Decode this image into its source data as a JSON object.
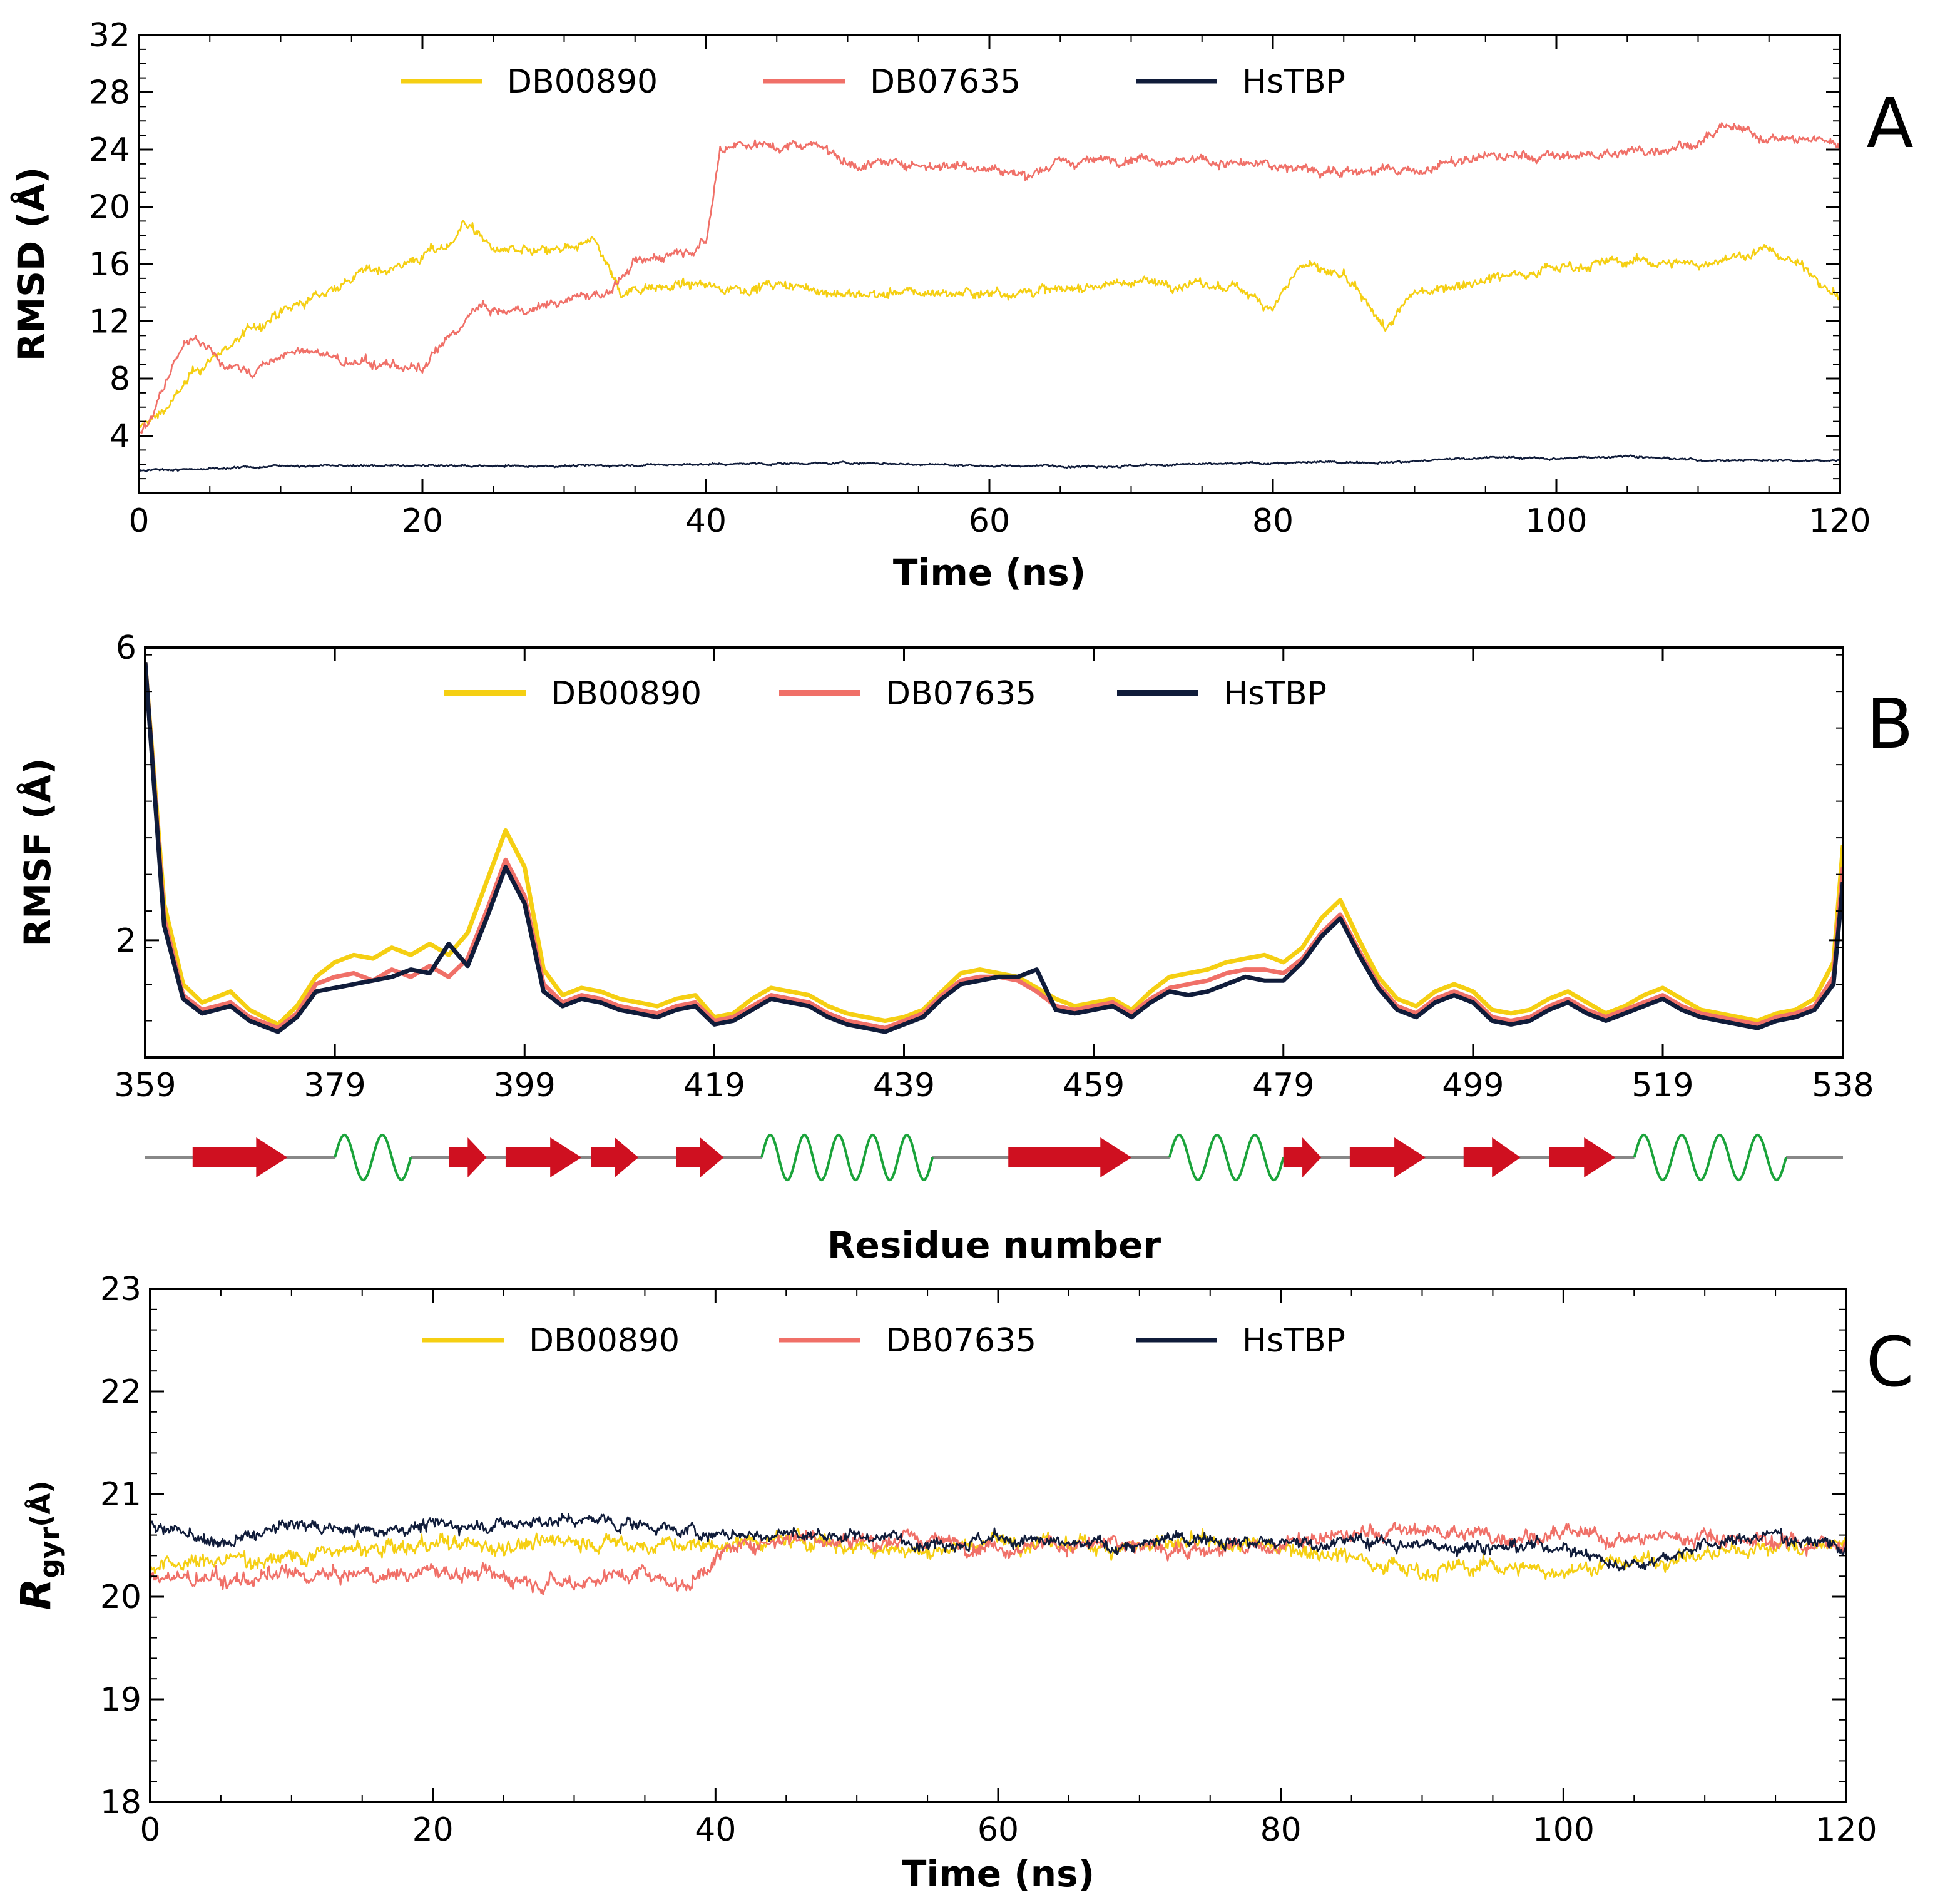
{
  "chart_data": [
    {
      "panel": "A",
      "type": "line",
      "xlabel": "Time (ns)",
      "ylabel": "RMSD (Å)",
      "xlim": [
        0,
        120
      ],
      "ylim": [
        0,
        32
      ],
      "xticks": [
        0,
        20,
        40,
        60,
        80,
        100,
        120
      ],
      "yticks": [
        4,
        8,
        12,
        16,
        20,
        24,
        28,
        32
      ],
      "legend_position": "top-center",
      "series": [
        {
          "name": "DB00890",
          "color": "#f5cf13",
          "x": [
            0,
            2,
            4,
            6,
            8,
            10,
            12,
            14,
            16,
            18,
            20,
            22,
            23,
            25,
            28,
            31,
            32,
            34,
            36,
            38,
            40,
            42,
            45,
            48,
            50,
            55,
            60,
            65,
            70,
            75,
            78,
            80,
            82,
            85,
            88,
            90,
            95,
            100,
            105,
            110,
            115,
            118,
            120
          ],
          "values": [
            4.5,
            6,
            8.5,
            10,
            11.5,
            12.5,
            13.5,
            14.5,
            15.5,
            15.8,
            16.5,
            17.5,
            19,
            17,
            16.8,
            17,
            18,
            14,
            14.5,
            14.5,
            14.5,
            14.3,
            14.5,
            14.2,
            13.8,
            14,
            14,
            14.2,
            14.8,
            14.5,
            14.2,
            13,
            16,
            15,
            11.5,
            14,
            15,
            15.8,
            16.2,
            16,
            17,
            15.5,
            13.5
          ]
        },
        {
          "name": "DB07635",
          "color": "#f07068",
          "x": [
            0,
            1,
            2,
            3,
            4,
            6,
            8,
            10,
            12,
            15,
            18,
            20,
            22,
            24,
            26,
            28,
            30,
            33,
            35,
            38,
            40,
            41,
            42,
            45,
            48,
            50,
            55,
            60,
            62,
            65,
            70,
            75,
            80,
            85,
            90,
            95,
            100,
            105,
            110,
            112,
            115,
            120
          ],
          "values": [
            4,
            5.5,
            8,
            10,
            11,
            9,
            8.5,
            9.5,
            10,
            9,
            9,
            8.5,
            11,
            13,
            12.5,
            13,
            13.5,
            14,
            16,
            17,
            17.5,
            24,
            24.5,
            24.2,
            24.5,
            23,
            23,
            22.8,
            22.2,
            23,
            23.5,
            23.2,
            22.8,
            22.5,
            22.5,
            23.5,
            23.5,
            23.8,
            24.5,
            25.5,
            24.8,
            24.5
          ]
        },
        {
          "name": "HsTBP",
          "color": "#101c3a",
          "x": [
            0,
            5,
            10,
            20,
            30,
            40,
            50,
            60,
            70,
            80,
            90,
            95,
            100,
            105,
            110,
            120
          ],
          "values": [
            1.6,
            1.7,
            1.9,
            1.9,
            1.9,
            2.0,
            2.1,
            1.9,
            1.9,
            2.1,
            2.2,
            2.5,
            2.4,
            2.6,
            2.3,
            2.3
          ]
        }
      ]
    },
    {
      "panel": "B",
      "type": "line",
      "xlabel": "Residue number",
      "ylabel": "RMSF (Å)",
      "xlim": [
        359,
        538
      ],
      "ylim": [
        0.4,
        6
      ],
      "xticks": [
        359,
        379,
        399,
        419,
        439,
        459,
        479,
        499,
        519,
        538
      ],
      "yticks": [
        2,
        6
      ],
      "legend_position": "top-center",
      "series": [
        {
          "name": "DB00890",
          "color": "#f5cf13",
          "x": [
            359,
            361,
            363,
            365,
            368,
            370,
            373,
            375,
            377,
            379,
            381,
            383,
            385,
            387,
            389,
            391,
            393,
            395,
            397,
            399,
            401,
            403,
            405,
            407,
            409,
            411,
            413,
            415,
            417,
            419,
            421,
            423,
            425,
            427,
            429,
            431,
            433,
            435,
            437,
            439,
            441,
            443,
            445,
            447,
            449,
            451,
            453,
            455,
            457,
            459,
            461,
            463,
            465,
            467,
            469,
            471,
            473,
            475,
            477,
            479,
            481,
            483,
            485,
            487,
            489,
            491,
            493,
            495,
            497,
            499,
            501,
            503,
            505,
            507,
            509,
            511,
            513,
            515,
            517,
            519,
            521,
            523,
            525,
            527,
            529,
            531,
            533,
            535,
            537,
            538
          ],
          "values": [
            5.8,
            2.5,
            1.4,
            1.15,
            1.3,
            1.05,
            0.85,
            1.1,
            1.5,
            1.7,
            1.8,
            1.75,
            1.9,
            1.8,
            1.95,
            1.8,
            2.1,
            2.8,
            3.5,
            3.0,
            1.6,
            1.25,
            1.35,
            1.3,
            1.2,
            1.15,
            1.1,
            1.2,
            1.25,
            0.95,
            1.0,
            1.2,
            1.35,
            1.3,
            1.25,
            1.1,
            1.0,
            0.95,
            0.9,
            0.95,
            1.05,
            1.3,
            1.55,
            1.6,
            1.55,
            1.5,
            1.35,
            1.2,
            1.1,
            1.15,
            1.2,
            1.05,
            1.3,
            1.5,
            1.55,
            1.6,
            1.7,
            1.75,
            1.8,
            1.7,
            1.9,
            2.3,
            2.55,
            2.0,
            1.5,
            1.2,
            1.1,
            1.3,
            1.4,
            1.3,
            1.05,
            1.0,
            1.05,
            1.2,
            1.3,
            1.15,
            1.0,
            1.1,
            1.25,
            1.35,
            1.2,
            1.05,
            1.0,
            0.95,
            0.9,
            1.0,
            1.05,
            1.2,
            1.7,
            3.3
          ]
        },
        {
          "name": "DB07635",
          "color": "#f07068",
          "x": [
            359,
            361,
            363,
            365,
            368,
            370,
            373,
            375,
            377,
            379,
            381,
            383,
            385,
            387,
            389,
            391,
            393,
            395,
            397,
            399,
            401,
            403,
            405,
            407,
            409,
            411,
            413,
            415,
            417,
            419,
            421,
            423,
            425,
            427,
            429,
            431,
            433,
            435,
            437,
            439,
            441,
            443,
            445,
            447,
            449,
            451,
            453,
            455,
            457,
            459,
            461,
            463,
            465,
            467,
            469,
            471,
            473,
            475,
            477,
            479,
            481,
            483,
            485,
            487,
            489,
            491,
            493,
            495,
            497,
            499,
            501,
            503,
            505,
            507,
            509,
            511,
            513,
            515,
            517,
            519,
            521,
            523,
            525,
            527,
            529,
            531,
            533,
            535,
            537,
            538
          ],
          "values": [
            5.8,
            2.3,
            1.25,
            1.05,
            1.15,
            0.95,
            0.8,
            1.0,
            1.4,
            1.5,
            1.55,
            1.45,
            1.6,
            1.5,
            1.65,
            1.5,
            1.75,
            2.4,
            3.1,
            2.6,
            1.4,
            1.15,
            1.25,
            1.2,
            1.1,
            1.05,
            1.0,
            1.1,
            1.15,
            0.9,
            0.95,
            1.1,
            1.25,
            1.2,
            1.15,
            1.0,
            0.9,
            0.85,
            0.8,
            0.9,
            1.0,
            1.25,
            1.45,
            1.5,
            1.5,
            1.45,
            1.3,
            1.1,
            1.05,
            1.1,
            1.15,
            1.0,
            1.2,
            1.35,
            1.4,
            1.45,
            1.55,
            1.6,
            1.6,
            1.55,
            1.75,
            2.1,
            2.35,
            1.85,
            1.4,
            1.1,
            1.0,
            1.2,
            1.3,
            1.2,
            0.95,
            0.9,
            0.95,
            1.1,
            1.2,
            1.05,
            0.95,
            1.05,
            1.15,
            1.25,
            1.1,
            1.0,
            0.95,
            0.9,
            0.85,
            0.95,
            1.0,
            1.1,
            1.5,
            3.0
          ]
        },
        {
          "name": "HsTBP",
          "color": "#101c3a",
          "x": [
            359,
            361,
            363,
            365,
            368,
            370,
            373,
            375,
            377,
            379,
            381,
            383,
            385,
            387,
            389,
            391,
            393,
            395,
            397,
            399,
            401,
            403,
            405,
            407,
            409,
            411,
            413,
            415,
            417,
            419,
            421,
            423,
            425,
            427,
            429,
            431,
            433,
            435,
            437,
            439,
            441,
            443,
            445,
            447,
            449,
            451,
            453,
            455,
            457,
            459,
            461,
            463,
            465,
            467,
            469,
            471,
            473,
            475,
            477,
            479,
            481,
            483,
            485,
            487,
            489,
            491,
            493,
            495,
            497,
            499,
            501,
            503,
            505,
            507,
            509,
            511,
            513,
            515,
            517,
            519,
            521,
            523,
            525,
            527,
            529,
            531,
            533,
            535,
            537,
            538
          ],
          "values": [
            5.8,
            2.2,
            1.2,
            1.0,
            1.1,
            0.9,
            0.75,
            0.95,
            1.3,
            1.35,
            1.4,
            1.45,
            1.5,
            1.6,
            1.55,
            1.95,
            1.65,
            2.3,
            3.0,
            2.5,
            1.3,
            1.1,
            1.2,
            1.15,
            1.05,
            1.0,
            0.95,
            1.05,
            1.1,
            0.85,
            0.9,
            1.05,
            1.2,
            1.15,
            1.1,
            0.95,
            0.85,
            0.8,
            0.75,
            0.85,
            0.95,
            1.2,
            1.4,
            1.45,
            1.5,
            1.5,
            1.6,
            1.05,
            1.0,
            1.05,
            1.1,
            0.95,
            1.15,
            1.3,
            1.25,
            1.3,
            1.4,
            1.5,
            1.45,
            1.45,
            1.7,
            2.05,
            2.3,
            1.8,
            1.35,
            1.05,
            0.95,
            1.15,
            1.25,
            1.15,
            0.9,
            0.85,
            0.9,
            1.05,
            1.15,
            1.0,
            0.9,
            1.0,
            1.1,
            1.2,
            1.05,
            0.95,
            0.9,
            0.85,
            0.8,
            0.9,
            0.95,
            1.05,
            1.4,
            2.8
          ]
        }
      ],
      "secondary_structure": [
        {
          "type": "strand",
          "start": 364,
          "end": 374
        },
        {
          "type": "helix",
          "start": 379,
          "end": 387
        },
        {
          "type": "strand",
          "start": 391,
          "end": 395
        },
        {
          "type": "strand",
          "start": 397,
          "end": 405
        },
        {
          "type": "strand",
          "start": 406,
          "end": 411
        },
        {
          "type": "strand",
          "start": 415,
          "end": 420
        },
        {
          "type": "helix",
          "start": 424,
          "end": 442
        },
        {
          "type": "strand",
          "start": 450,
          "end": 463
        },
        {
          "type": "helix",
          "start": 467,
          "end": 479
        },
        {
          "type": "strand",
          "start": 479,
          "end": 483
        },
        {
          "type": "strand",
          "start": 486,
          "end": 494
        },
        {
          "type": "strand",
          "start": 498,
          "end": 504
        },
        {
          "type": "strand",
          "start": 507,
          "end": 514
        },
        {
          "type": "helix",
          "start": 516,
          "end": 532
        }
      ]
    },
    {
      "panel": "C",
      "type": "line",
      "xlabel": "Time (ns)",
      "ylabel": "R",
      "ylabel_sub": "gyr",
      "ylabel_unit": "(Å)",
      "xlim": [
        0,
        120
      ],
      "ylim": [
        18,
        23
      ],
      "xticks": [
        0,
        20,
        40,
        60,
        80,
        100,
        120
      ],
      "yticks": [
        18,
        19,
        20,
        21,
        22,
        23
      ],
      "legend_position": "top-center",
      "series": [
        {
          "name": "DB00890",
          "color": "#f5cf13",
          "x": [
            0,
            5,
            10,
            15,
            20,
            25,
            30,
            35,
            40,
            45,
            50,
            55,
            60,
            65,
            70,
            75,
            80,
            85,
            90,
            95,
            100,
            105,
            110,
            115,
            120
          ],
          "values": [
            20.3,
            20.35,
            20.4,
            20.45,
            20.5,
            20.5,
            20.55,
            20.5,
            20.5,
            20.55,
            20.5,
            20.45,
            20.55,
            20.5,
            20.5,
            20.5,
            20.5,
            20.4,
            20.25,
            20.3,
            20.25,
            20.35,
            20.4,
            20.5,
            20.5
          ]
        },
        {
          "name": "DB07635",
          "color": "#f07068",
          "x": [
            0,
            5,
            10,
            15,
            20,
            25,
            30,
            35,
            38,
            40,
            45,
            50,
            55,
            60,
            65,
            70,
            75,
            80,
            85,
            90,
            95,
            100,
            105,
            110,
            115,
            120
          ],
          "values": [
            20.2,
            20.15,
            20.2,
            20.2,
            20.25,
            20.2,
            20.15,
            20.25,
            20.1,
            20.4,
            20.6,
            20.55,
            20.55,
            20.5,
            20.5,
            20.5,
            20.45,
            20.5,
            20.6,
            20.65,
            20.6,
            20.6,
            20.55,
            20.6,
            20.55,
            20.5
          ]
        },
        {
          "name": "HsTBP",
          "color": "#101c3a",
          "x": [
            0,
            5,
            10,
            15,
            20,
            25,
            30,
            35,
            40,
            45,
            50,
            55,
            60,
            65,
            70,
            75,
            80,
            85,
            90,
            95,
            100,
            104,
            110,
            115,
            120
          ],
          "values": [
            20.7,
            20.5,
            20.7,
            20.65,
            20.7,
            20.7,
            20.75,
            20.7,
            20.6,
            20.6,
            20.6,
            20.55,
            20.55,
            20.5,
            20.5,
            20.6,
            20.5,
            20.55,
            20.5,
            20.5,
            20.5,
            20.3,
            20.5,
            20.6,
            20.5
          ]
        }
      ]
    }
  ]
}
